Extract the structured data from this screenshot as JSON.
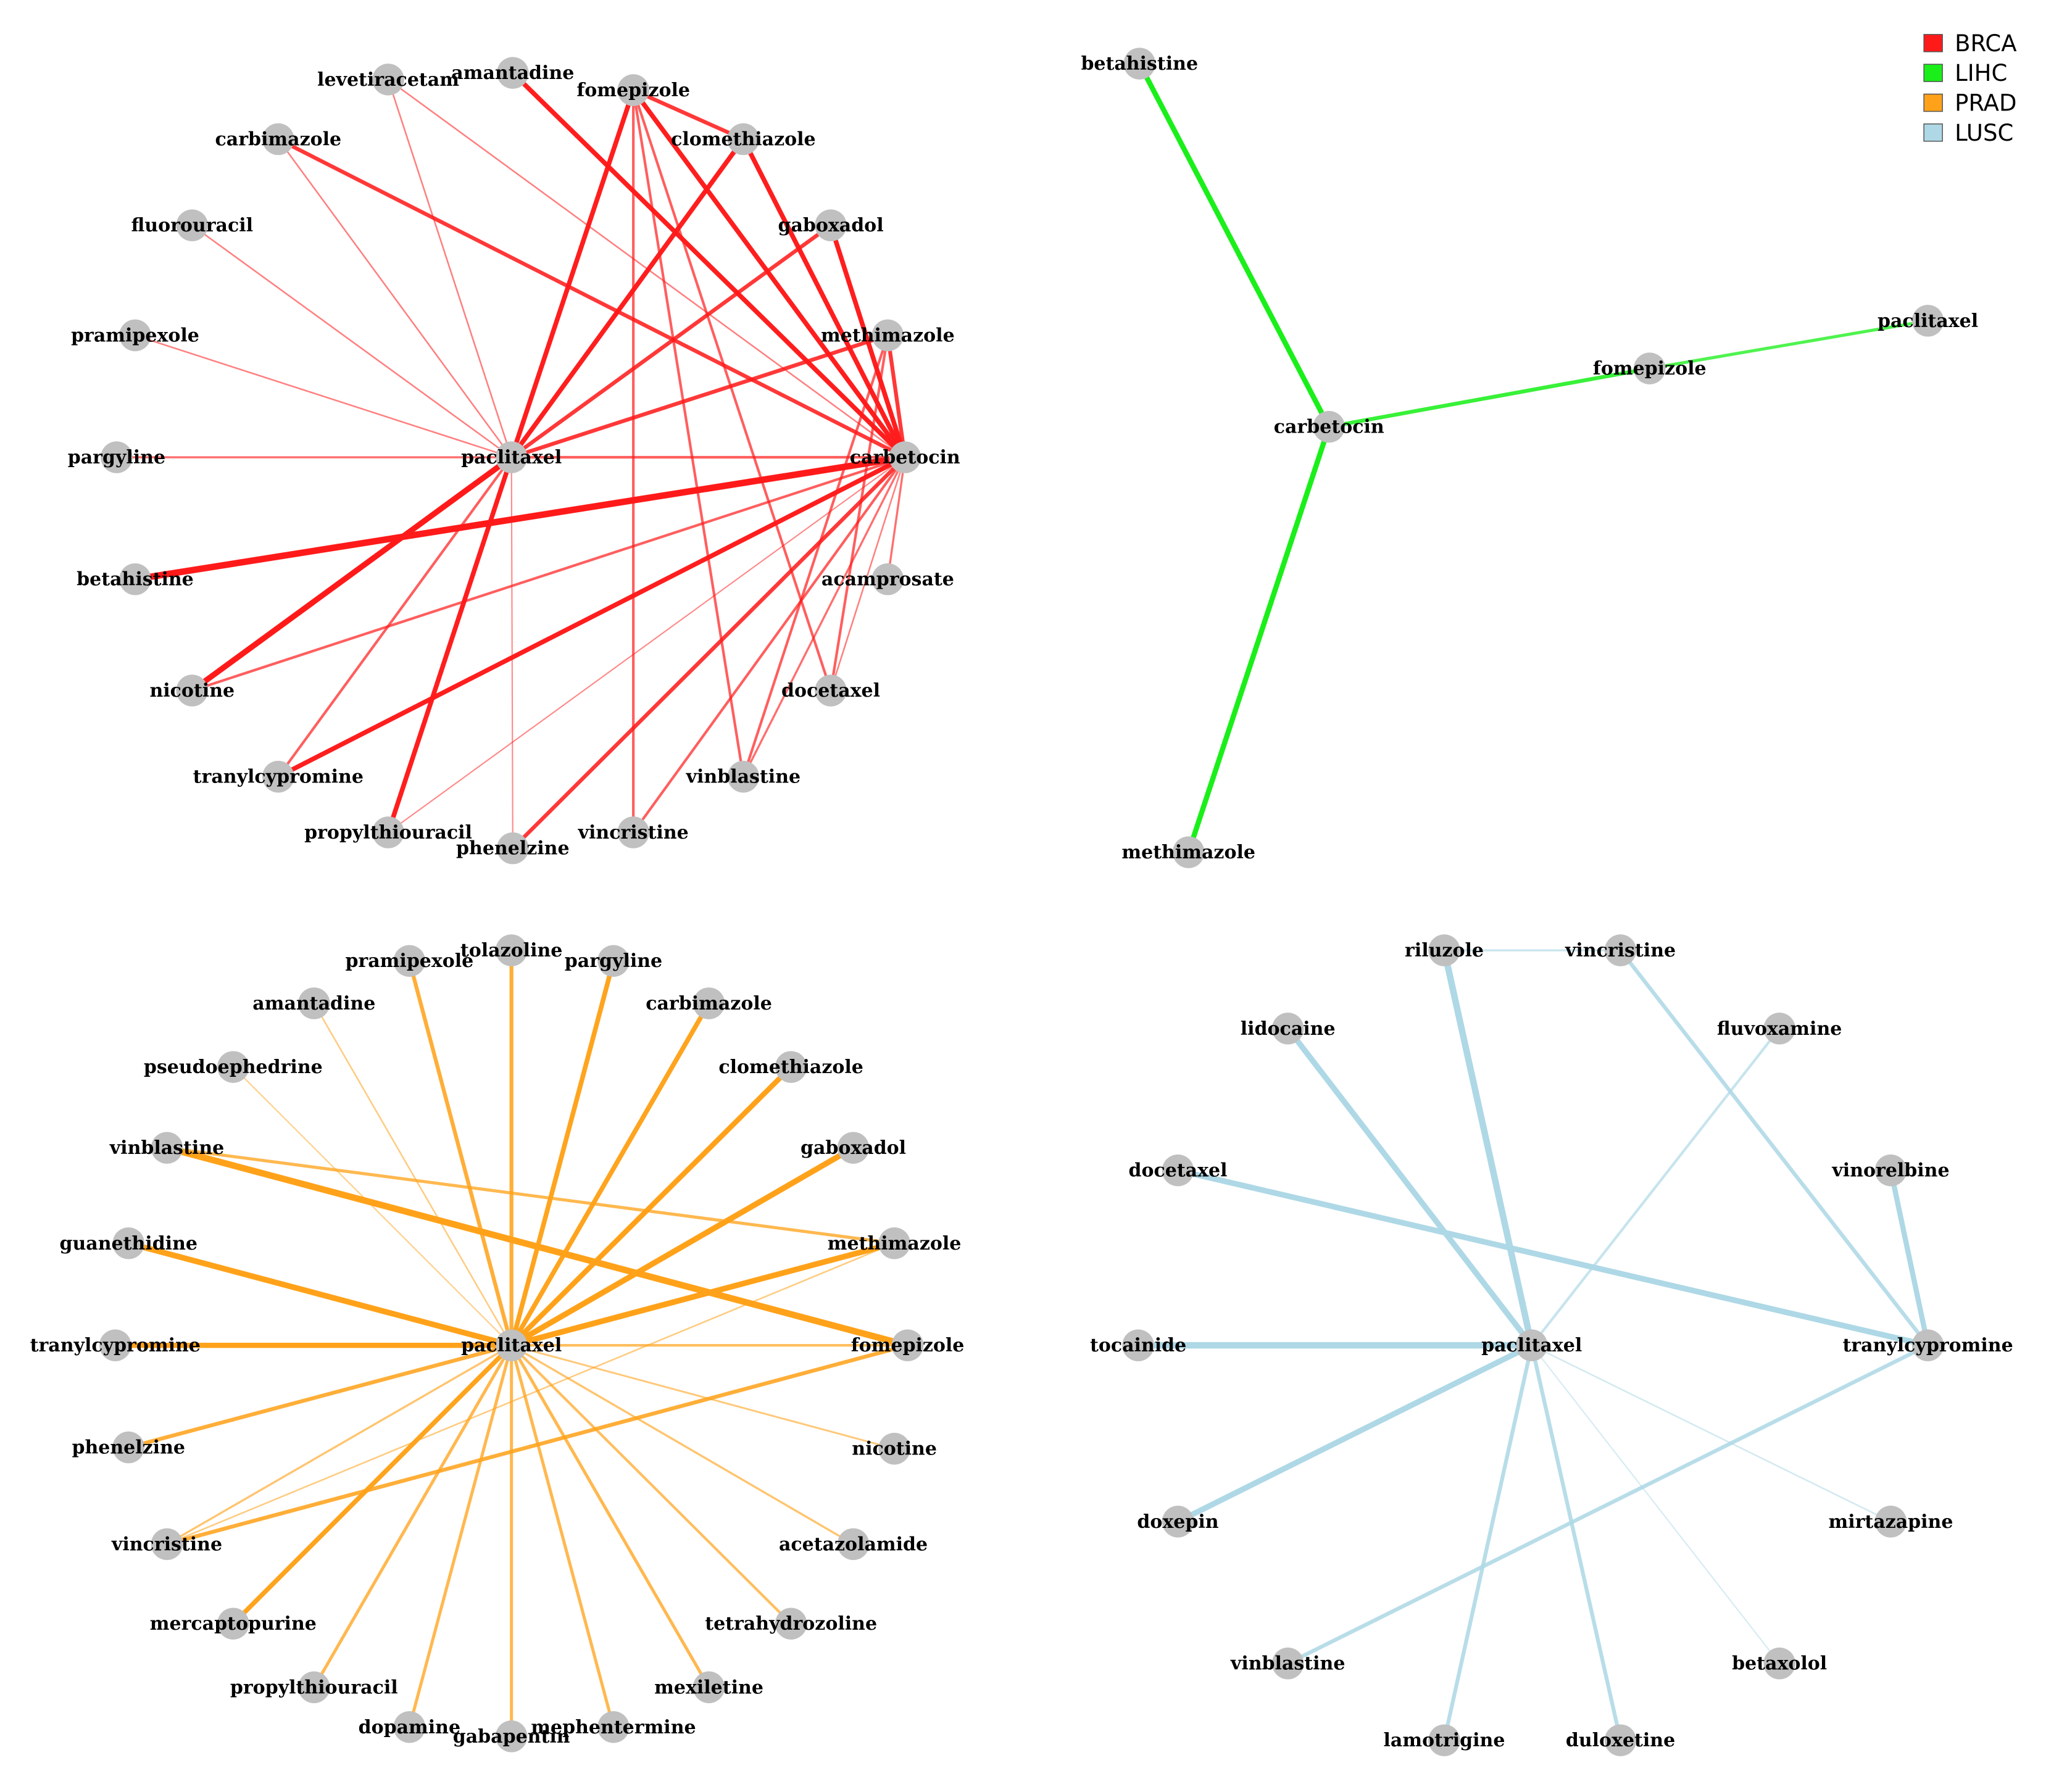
{
  "legend": [
    {
      "label": "BRCA",
      "color": "#ff1a1a"
    },
    {
      "label": "LIHC",
      "color": "#1aef1a"
    },
    {
      "label": "PRAD",
      "color": "#ffa21a"
    },
    {
      "label": "LUSC",
      "color": "#aed8e6"
    }
  ],
  "node_color": "#c0c0c0",
  "networks": [
    {
      "id": "BRCA",
      "color": "#ff1a1a",
      "nodes": [
        "amantadine",
        "levetiracetam",
        "fomepizole",
        "clomethiazole",
        "carbimazole",
        "gaboxadol",
        "fluorouracil",
        "methimazole",
        "pramipexole",
        "pargyline",
        "paclitaxel",
        "carbetocin",
        "betahistine",
        "acamprosate",
        "nicotine",
        "docetaxel",
        "tranylcypromine",
        "vinblastine",
        "propylthiouracil",
        "phenelzine",
        "vincristine"
      ],
      "edges": [
        {
          "a": "betahistine",
          "b": "carbetocin",
          "w": 2.5
        },
        {
          "a": "nicotine",
          "b": "paclitaxel",
          "w": 2.2
        },
        {
          "a": "fomepizole",
          "b": "paclitaxel",
          "w": 1.8
        },
        {
          "a": "fomepizole",
          "b": "carbetocin",
          "w": 1.8
        },
        {
          "a": "amantadine",
          "b": "carbetocin",
          "w": 1.8
        },
        {
          "a": "clomethiazole",
          "b": "paclitaxel",
          "w": 1.8
        },
        {
          "a": "gaboxadol",
          "b": "carbetocin",
          "w": 1.8
        },
        {
          "a": "gaboxadol",
          "b": "paclitaxel",
          "w": 1.5
        },
        {
          "a": "methimazole",
          "b": "paclitaxel",
          "w": 1.5
        },
        {
          "a": "carbimazole",
          "b": "carbetocin",
          "w": 1.5
        },
        {
          "a": "propylthiouracil",
          "b": "paclitaxel",
          "w": 1.8
        },
        {
          "a": "tranylcypromine",
          "b": "carbetocin",
          "w": 1.8
        },
        {
          "a": "phenelzine",
          "b": "carbetocin",
          "w": 1.5
        },
        {
          "a": "fomepizole",
          "b": "clomethiazole",
          "w": 1.5
        },
        {
          "a": "clomethiazole",
          "b": "carbetocin",
          "w": 1.8
        },
        {
          "a": "methimazole",
          "b": "carbetocin",
          "w": 1.5
        },
        {
          "a": "paclitaxel",
          "b": "carbetocin",
          "w": 1.0
        },
        {
          "a": "pargyline",
          "b": "paclitaxel",
          "w": 0.8
        },
        {
          "a": "nicotine",
          "b": "carbetocin",
          "w": 1.0
        },
        {
          "a": "fomepizole",
          "b": "vincristine",
          "w": 1.0
        },
        {
          "a": "fomepizole",
          "b": "vinblastine",
          "w": 1.0
        },
        {
          "a": "fomepizole",
          "b": "docetaxel",
          "w": 1.0
        },
        {
          "a": "vinblastine",
          "b": "methimazole",
          "w": 1.0
        },
        {
          "a": "vincristine",
          "b": "carbetocin",
          "w": 1.0
        },
        {
          "a": "docetaxel",
          "b": "methimazole",
          "w": 1.0
        },
        {
          "a": "acamprosate",
          "b": "carbetocin",
          "w": 0.8
        },
        {
          "a": "tranylcypromine",
          "b": "paclitaxel",
          "w": 1.0
        },
        {
          "a": "vinblastine",
          "b": "carbetocin",
          "w": 0.8
        },
        {
          "a": "fluorouracil",
          "b": "paclitaxel",
          "w": 0.6
        },
        {
          "a": "pramipexole",
          "b": "paclitaxel",
          "w": 0.6
        },
        {
          "a": "levetiracetam",
          "b": "paclitaxel",
          "w": 0.6
        },
        {
          "a": "levetiracetam",
          "b": "carbetocin",
          "w": 0.6
        },
        {
          "a": "carbimazole",
          "b": "paclitaxel",
          "w": 0.6
        },
        {
          "a": "phenelzine",
          "b": "paclitaxel",
          "w": 0.5
        },
        {
          "a": "propylthiouracil",
          "b": "carbetocin",
          "w": 0.5
        },
        {
          "a": "docetaxel",
          "b": "carbetocin",
          "w": 0.6
        }
      ]
    },
    {
      "id": "LIHC",
      "color": "#1aef1a",
      "nodes": [
        "betahistine",
        "paclitaxel",
        "fomepizole",
        "carbetocin",
        "methimazole"
      ],
      "edges": [
        {
          "a": "betahistine",
          "b": "carbetocin",
          "w": 2.0
        },
        {
          "a": "carbetocin",
          "b": "methimazole",
          "w": 2.0
        },
        {
          "a": "carbetocin",
          "b": "fomepizole",
          "w": 1.5
        },
        {
          "a": "fomepizole",
          "b": "paclitaxel",
          "w": 1.2
        }
      ]
    },
    {
      "id": "PRAD",
      "color": "#ffa21a",
      "nodes": [
        "pramipexole",
        "tolazoline",
        "pargyline",
        "amantadine",
        "carbimazole",
        "pseudoephedrine",
        "clomethiazole",
        "vinblastine",
        "gaboxadol",
        "guanethidine",
        "methimazole",
        "tranylcypromine",
        "paclitaxel",
        "fomepizole",
        "phenelzine",
        "nicotine",
        "vincristine",
        "acetazolamide",
        "mercaptopurine",
        "tetrahydrozoline",
        "propylthiouracil",
        "mexiletine",
        "dopamine",
        "mephentermine",
        "gabapentin"
      ],
      "edges": [
        {
          "a": "vinblastine",
          "b": "fomepizole",
          "w": 2.5
        },
        {
          "a": "guanethidine",
          "b": "paclitaxel",
          "w": 2.2
        },
        {
          "a": "gaboxadol",
          "b": "paclitaxel",
          "w": 2.2
        },
        {
          "a": "methimazole",
          "b": "paclitaxel",
          "w": 2.2
        },
        {
          "a": "tranylcypromine",
          "b": "paclitaxel",
          "w": 2.0
        },
        {
          "a": "clomethiazole",
          "b": "paclitaxel",
          "w": 2.0
        },
        {
          "a": "carbimazole",
          "b": "paclitaxel",
          "w": 1.8
        },
        {
          "a": "pargyline",
          "b": "paclitaxel",
          "w": 1.8
        },
        {
          "a": "mercaptopurine",
          "b": "paclitaxel",
          "w": 1.8
        },
        {
          "a": "pramipexole",
          "b": "paclitaxel",
          "w": 1.5
        },
        {
          "a": "tolazoline",
          "b": "paclitaxel",
          "w": 1.5
        },
        {
          "a": "phenelzine",
          "b": "paclitaxel",
          "w": 1.5
        },
        {
          "a": "vincristine",
          "b": "fomepizole",
          "w": 1.5
        },
        {
          "a": "vinblastine",
          "b": "methimazole",
          "w": 1.2
        },
        {
          "a": "propylthiouracil",
          "b": "paclitaxel",
          "w": 1.2
        },
        {
          "a": "dopamine",
          "b": "paclitaxel",
          "w": 1.2
        },
        {
          "a": "gabapentin",
          "b": "paclitaxel",
          "w": 1.2
        },
        {
          "a": "mephentermine",
          "b": "paclitaxel",
          "w": 1.2
        },
        {
          "a": "mexiletine",
          "b": "paclitaxel",
          "w": 1.2
        },
        {
          "a": "paclitaxel",
          "b": "fomepizole",
          "w": 1.0
        },
        {
          "a": "tetrahydrozoline",
          "b": "paclitaxel",
          "w": 1.0
        },
        {
          "a": "acetazolamide",
          "b": "paclitaxel",
          "w": 0.8
        },
        {
          "a": "nicotine",
          "b": "paclitaxel",
          "w": 0.7
        },
        {
          "a": "vincristine",
          "b": "paclitaxel",
          "w": 0.8
        },
        {
          "a": "vincristine",
          "b": "methimazole",
          "w": 0.6
        },
        {
          "a": "amantadine",
          "b": "paclitaxel",
          "w": 0.6
        },
        {
          "a": "pseudoephedrine",
          "b": "paclitaxel",
          "w": 0.5
        }
      ]
    },
    {
      "id": "LUSC",
      "color": "#aed8e6",
      "nodes": [
        "riluzole",
        "vincristine",
        "lidocaine",
        "fluvoxamine",
        "docetaxel",
        "vinorelbine",
        "tocainide",
        "paclitaxel",
        "tranylcypromine",
        "doxepin",
        "mirtazapine",
        "vinblastine",
        "betaxolol",
        "lamotrigine",
        "duloxetine"
      ],
      "edges": [
        {
          "a": "tocainide",
          "b": "paclitaxel",
          "w": 2.5
        },
        {
          "a": "riluzole",
          "b": "paclitaxel",
          "w": 2.5
        },
        {
          "a": "docetaxel",
          "b": "tranylcypromine",
          "w": 2.2
        },
        {
          "a": "lidocaine",
          "b": "paclitaxel",
          "w": 2.2
        },
        {
          "a": "doxepin",
          "b": "paclitaxel",
          "w": 2.2
        },
        {
          "a": "vinorelbine",
          "b": "tranylcypromine",
          "w": 2.0
        },
        {
          "a": "vincristine",
          "b": "tranylcypromine",
          "w": 1.5
        },
        {
          "a": "tranylcypromine",
          "b": "vinblastine",
          "w": 1.5
        },
        {
          "a": "lamotrigine",
          "b": "paclitaxel",
          "w": 1.5
        },
        {
          "a": "duloxetine",
          "b": "paclitaxel",
          "w": 1.5
        },
        {
          "a": "fluvoxamine",
          "b": "paclitaxel",
          "w": 1.0
        },
        {
          "a": "riluzole",
          "b": "vincristine",
          "w": 0.8
        },
        {
          "a": "mirtazapine",
          "b": "paclitaxel",
          "w": 0.6
        },
        {
          "a": "betaxolol",
          "b": "paclitaxel",
          "w": 0.5
        }
      ]
    }
  ]
}
